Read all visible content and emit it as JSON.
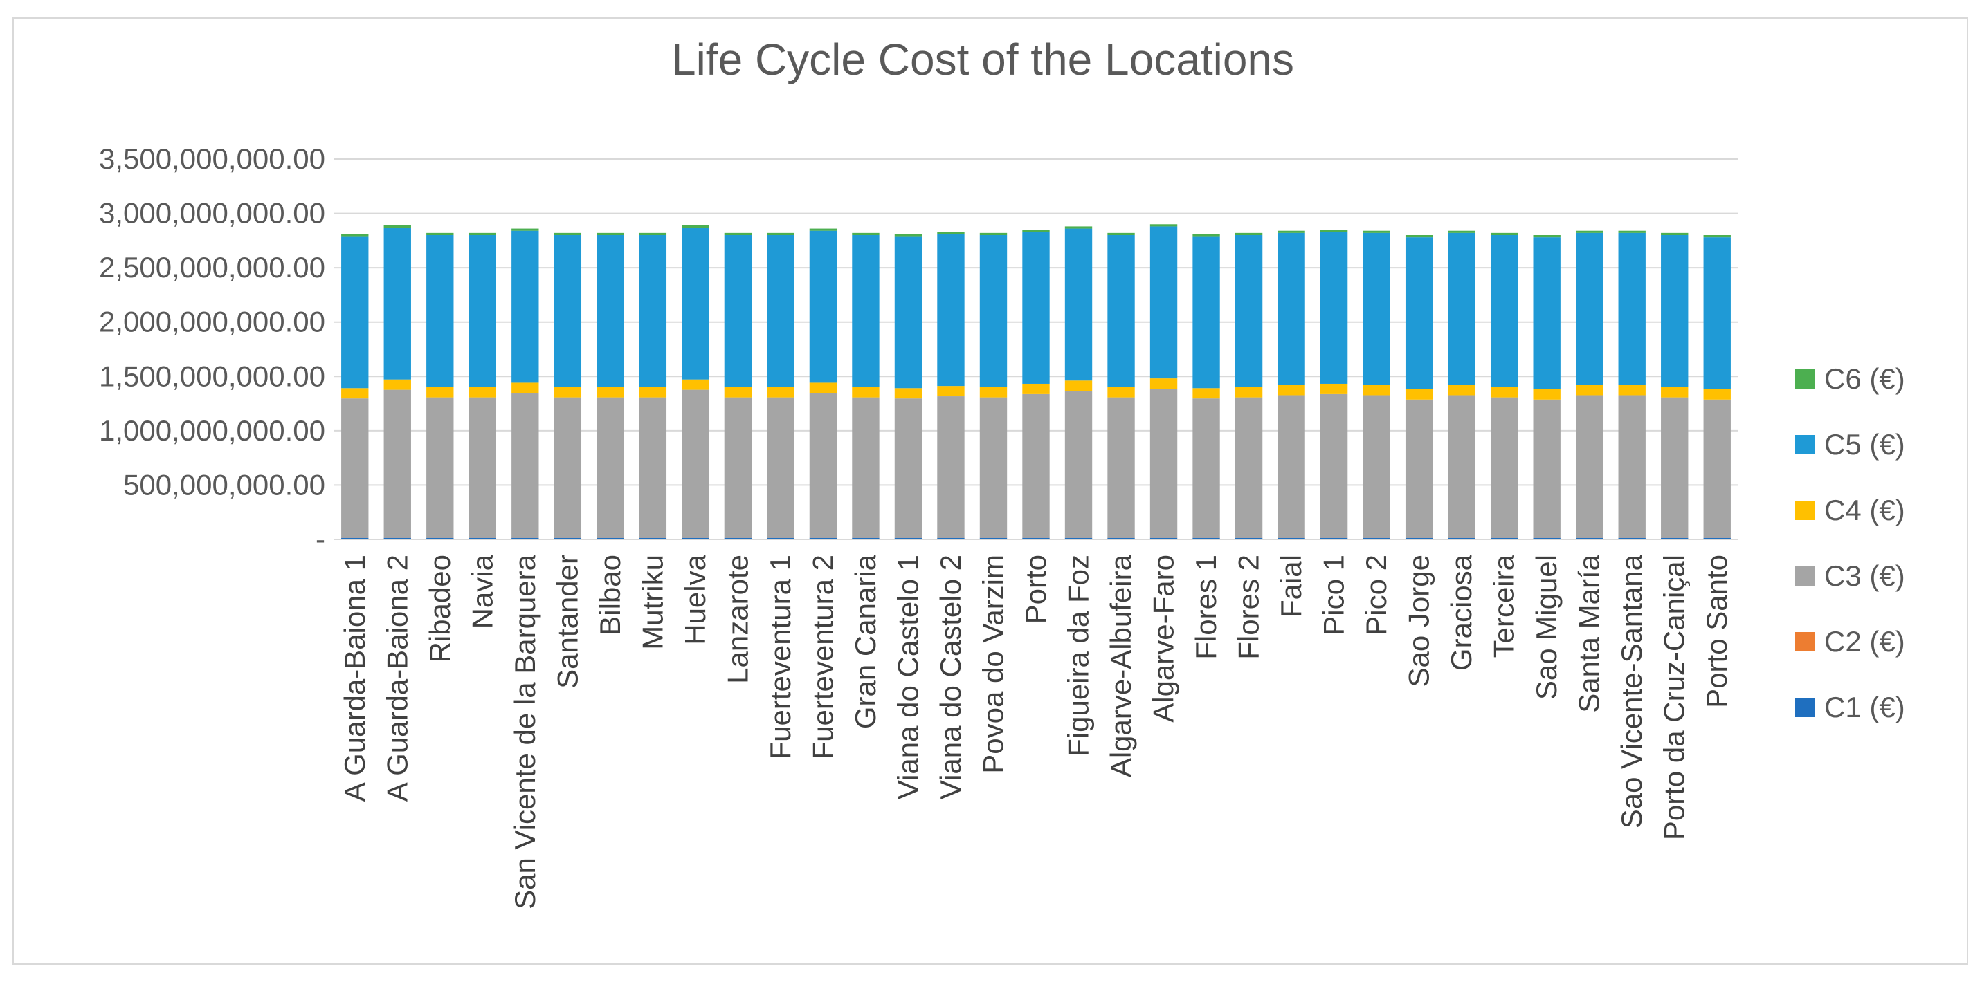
{
  "chart_data": {
    "type": "bar",
    "stacked": true,
    "title": "Life Cycle Cost of the Locations",
    "xlabel": "",
    "ylabel": "",
    "ylim": [
      0,
      3500000000
    ],
    "yticks": [
      0,
      500000000,
      1000000000,
      1500000000,
      2000000000,
      2500000000,
      3000000000,
      3500000000
    ],
    "ytick_labels": [
      "-",
      "500,000,000.00",
      "1,000,000,000.00",
      "1,500,000,000.00",
      "2,000,000,000.00",
      "2,500,000,000.00",
      "3,000,000,000.00",
      "3,500,000,000.00"
    ],
    "grid": true,
    "legend_position": "right",
    "categories": [
      "A Guarda-Baiona 1",
      "A Guarda-Baiona 2",
      "Ribadeo",
      "Navia",
      "San Vicente de la Barquera",
      "Santander",
      "Bilbao",
      "Mutriku",
      "Huelva",
      "Lanzarote",
      "Fuerteventura 1",
      "Fuerteventura 2",
      "Gran Canaria",
      "Viana do Castelo 1",
      "Viana do Castelo 2",
      "Povoa do Varzim",
      "Porto",
      "Figueira da Foz",
      "Algarve-Albufeira",
      "Algarve-Faro",
      "Flores 1",
      "Flores 2",
      "Faial",
      "Pico 1",
      "Pico 2",
      "Sao Jorge",
      "Graciosa",
      "Terceira",
      "Sao Miguel",
      "Santa María",
      "Sao Vicente-Santana",
      "Porto da Cruz-Caniçal",
      "Porto Santo"
    ],
    "series": [
      {
        "name": "C1 (€)",
        "color": "#1f6fbf",
        "values": [
          15000000,
          15000000,
          15000000,
          15000000,
          15000000,
          15000000,
          15000000,
          15000000,
          15000000,
          15000000,
          15000000,
          15000000,
          15000000,
          15000000,
          15000000,
          15000000,
          15000000,
          15000000,
          15000000,
          15000000,
          15000000,
          15000000,
          15000000,
          15000000,
          15000000,
          15000000,
          15000000,
          15000000,
          15000000,
          15000000,
          15000000,
          15000000,
          15000000
        ]
      },
      {
        "name": "C2 (€)",
        "color": "#ed7d31",
        "values": [
          2000000,
          2000000,
          2000000,
          2000000,
          2000000,
          2000000,
          2000000,
          2000000,
          2000000,
          2000000,
          2000000,
          2000000,
          2000000,
          2000000,
          2000000,
          2000000,
          2000000,
          2000000,
          2000000,
          2000000,
          2000000,
          2000000,
          2000000,
          2000000,
          2000000,
          2000000,
          2000000,
          2000000,
          2000000,
          2000000,
          2000000,
          2000000,
          2000000
        ]
      },
      {
        "name": "C3 (€)",
        "color": "#a5a5a5",
        "values": [
          1280000000,
          1360000000,
          1290000000,
          1290000000,
          1330000000,
          1290000000,
          1290000000,
          1290000000,
          1360000000,
          1290000000,
          1290000000,
          1330000000,
          1290000000,
          1280000000,
          1300000000,
          1290000000,
          1320000000,
          1350000000,
          1290000000,
          1370000000,
          1280000000,
          1290000000,
          1310000000,
          1320000000,
          1310000000,
          1270000000,
          1310000000,
          1290000000,
          1270000000,
          1310000000,
          1310000000,
          1290000000,
          1270000000
        ]
      },
      {
        "name": "C4 (€)",
        "color": "#ffc000",
        "values": [
          95000000,
          95000000,
          95000000,
          95000000,
          95000000,
          95000000,
          95000000,
          95000000,
          95000000,
          95000000,
          95000000,
          95000000,
          95000000,
          95000000,
          95000000,
          95000000,
          95000000,
          95000000,
          95000000,
          95000000,
          95000000,
          95000000,
          95000000,
          95000000,
          95000000,
          95000000,
          95000000,
          95000000,
          95000000,
          95000000,
          95000000,
          95000000,
          95000000
        ]
      },
      {
        "name": "C5 (€)",
        "color": "#1f9ad6",
        "values": [
          1398000000,
          1398000000,
          1398000000,
          1398000000,
          1398000000,
          1398000000,
          1398000000,
          1398000000,
          1398000000,
          1398000000,
          1398000000,
          1398000000,
          1398000000,
          1398000000,
          1398000000,
          1398000000,
          1398000000,
          1398000000,
          1398000000,
          1398000000,
          1398000000,
          1398000000,
          1398000000,
          1398000000,
          1398000000,
          1398000000,
          1398000000,
          1398000000,
          1398000000,
          1398000000,
          1398000000,
          1398000000,
          1398000000
        ]
      },
      {
        "name": "C6 (€)",
        "color": "#4caf50",
        "values": [
          20000000,
          20000000,
          20000000,
          20000000,
          20000000,
          20000000,
          20000000,
          20000000,
          20000000,
          20000000,
          20000000,
          20000000,
          20000000,
          20000000,
          20000000,
          20000000,
          20000000,
          20000000,
          20000000,
          20000000,
          20000000,
          20000000,
          20000000,
          20000000,
          20000000,
          20000000,
          20000000,
          20000000,
          20000000,
          20000000,
          20000000,
          20000000,
          20000000
        ]
      }
    ]
  }
}
